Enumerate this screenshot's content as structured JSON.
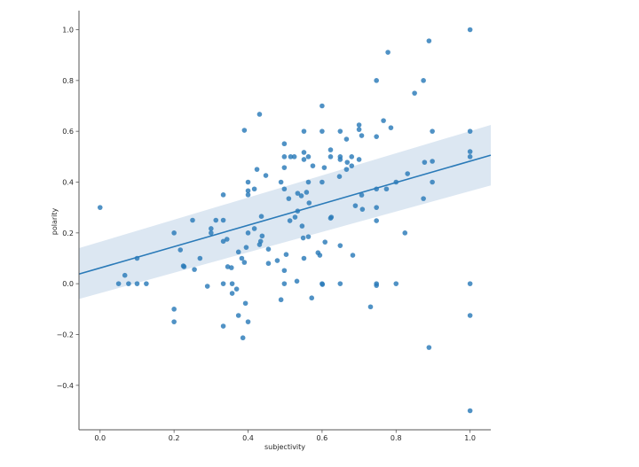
{
  "chart_data": {
    "type": "scatter",
    "title": "",
    "xlabel": "subjectivity",
    "ylabel": "polarity",
    "xlim": [
      -0.057,
      1.056
    ],
    "ylim": [
      -0.575,
      1.075
    ],
    "xticks": [
      0.0,
      0.2,
      0.4,
      0.6,
      0.8,
      1.0
    ],
    "xtick_labels": [
      "0.0",
      "0.2",
      "0.4",
      "0.6",
      "0.8",
      "1.0"
    ],
    "yticks": [
      -0.4,
      -0.2,
      0.0,
      0.2,
      0.4,
      0.6,
      0.8,
      1.0
    ],
    "ytick_labels": [
      "−0.4",
      "−0.2",
      "0.0",
      "0.2",
      "0.4",
      "0.6",
      "0.8",
      "1.0"
    ],
    "grid": false,
    "legend": null,
    "colors": {
      "points": "#2a7ab8",
      "line": "#2a7ab8",
      "ci_band": "#dce7f2"
    },
    "regression": {
      "x": [
        -0.057,
        1.056
      ],
      "y": [
        0.038,
        0.506
      ],
      "ci_upper": [
        0.14,
        0.625
      ],
      "ci_lower": [
        -0.06,
        0.387
      ]
    },
    "x": [
      0.0,
      0.05,
      0.067,
      0.077,
      0.1,
      0.1,
      0.125,
      0.2,
      0.2,
      0.2,
      0.217,
      0.225,
      0.227,
      0.25,
      0.255,
      0.27,
      0.29,
      0.3,
      0.3,
      0.313,
      0.333,
      0.333,
      0.333,
      0.333,
      0.333,
      0.343,
      0.345,
      0.355,
      0.357,
      0.357,
      0.369,
      0.374,
      0.374,
      0.383,
      0.386,
      0.39,
      0.39,
      0.393,
      0.395,
      0.4,
      0.4,
      0.4,
      0.4,
      0.4,
      0.417,
      0.417,
      0.424,
      0.431,
      0.431,
      0.434,
      0.436,
      0.438,
      0.448,
      0.455,
      0.455,
      0.479,
      0.489,
      0.489,
      0.498,
      0.498,
      0.498,
      0.498,
      0.498,
      0.498,
      0.503,
      0.51,
      0.513,
      0.515,
      0.525,
      0.527,
      0.532,
      0.534,
      0.534,
      0.544,
      0.546,
      0.549,
      0.551,
      0.551,
      0.551,
      0.551,
      0.558,
      0.563,
      0.563,
      0.563,
      0.565,
      0.572,
      0.575,
      0.589,
      0.594,
      0.6,
      0.6,
      0.6,
      0.6,
      0.601,
      0.606,
      0.608,
      0.623,
      0.623,
      0.623,
      0.625,
      0.647,
      0.649,
      0.649,
      0.649,
      0.649,
      0.649,
      0.666,
      0.666,
      0.668,
      0.68,
      0.68,
      0.683,
      0.69,
      0.7,
      0.7,
      0.7,
      0.707,
      0.707,
      0.709,
      0.731,
      0.747,
      0.747,
      0.747,
      0.747,
      0.747,
      0.747,
      0.747,
      0.766,
      0.774,
      0.778,
      0.786,
      0.8,
      0.8,
      0.824,
      0.831,
      0.85,
      0.874,
      0.874,
      0.877,
      0.889,
      0.889,
      0.898,
      0.898,
      0.898,
      1.0,
      1.0,
      1.0,
      1.0,
      1.0,
      1.0,
      1.0
    ],
    "y": [
      0.3,
      0.0,
      0.033,
      0.0,
      0.1,
      0.0,
      0.0,
      0.2,
      -0.1,
      -0.15,
      0.133,
      0.07,
      0.067,
      0.25,
      0.056,
      0.1,
      -0.01,
      0.217,
      0.2,
      0.25,
      0.35,
      0.25,
      0.167,
      0.0,
      -0.167,
      0.175,
      0.067,
      0.063,
      0.0,
      -0.038,
      -0.021,
      0.125,
      -0.125,
      0.1,
      -0.213,
      0.604,
      0.084,
      -0.077,
      0.143,
      0.4,
      0.366,
      0.35,
      0.2,
      -0.15,
      0.373,
      0.217,
      0.45,
      0.667,
      0.154,
      0.167,
      0.265,
      0.188,
      0.426,
      0.136,
      0.08,
      0.091,
      0.4,
      -0.063,
      0.551,
      0.5,
      0.457,
      0.373,
      0.052,
      0.0,
      0.115,
      0.335,
      0.248,
      0.5,
      0.5,
      0.262,
      0.01,
      0.356,
      0.286,
      0.346,
      0.227,
      0.18,
      0.6,
      0.517,
      0.489,
      0.1,
      0.36,
      0.5,
      0.4,
      0.185,
      0.318,
      -0.056,
      0.464,
      0.122,
      0.112,
      0.7,
      0.6,
      0.4,
      0.0,
      -0.003,
      0.457,
      0.164,
      0.527,
      0.5,
      0.258,
      0.262,
      0.422,
      0.6,
      0.5,
      0.489,
      0.15,
      0.0,
      0.569,
      0.45,
      0.478,
      0.5,
      0.464,
      0.112,
      0.307,
      0.625,
      0.607,
      0.489,
      0.583,
      0.349,
      0.293,
      -0.091,
      0.8,
      0.579,
      0.373,
      0.3,
      0.248,
      0.0,
      -0.007,
      0.642,
      0.373,
      0.911,
      0.614,
      0.4,
      0.0,
      0.2,
      0.433,
      0.75,
      0.8,
      0.335,
      0.478,
      0.956,
      -0.251,
      0.6,
      0.482,
      0.4,
      1.0,
      0.6,
      0.52,
      0.5,
      0.0,
      -0.125,
      -0.5
    ]
  }
}
